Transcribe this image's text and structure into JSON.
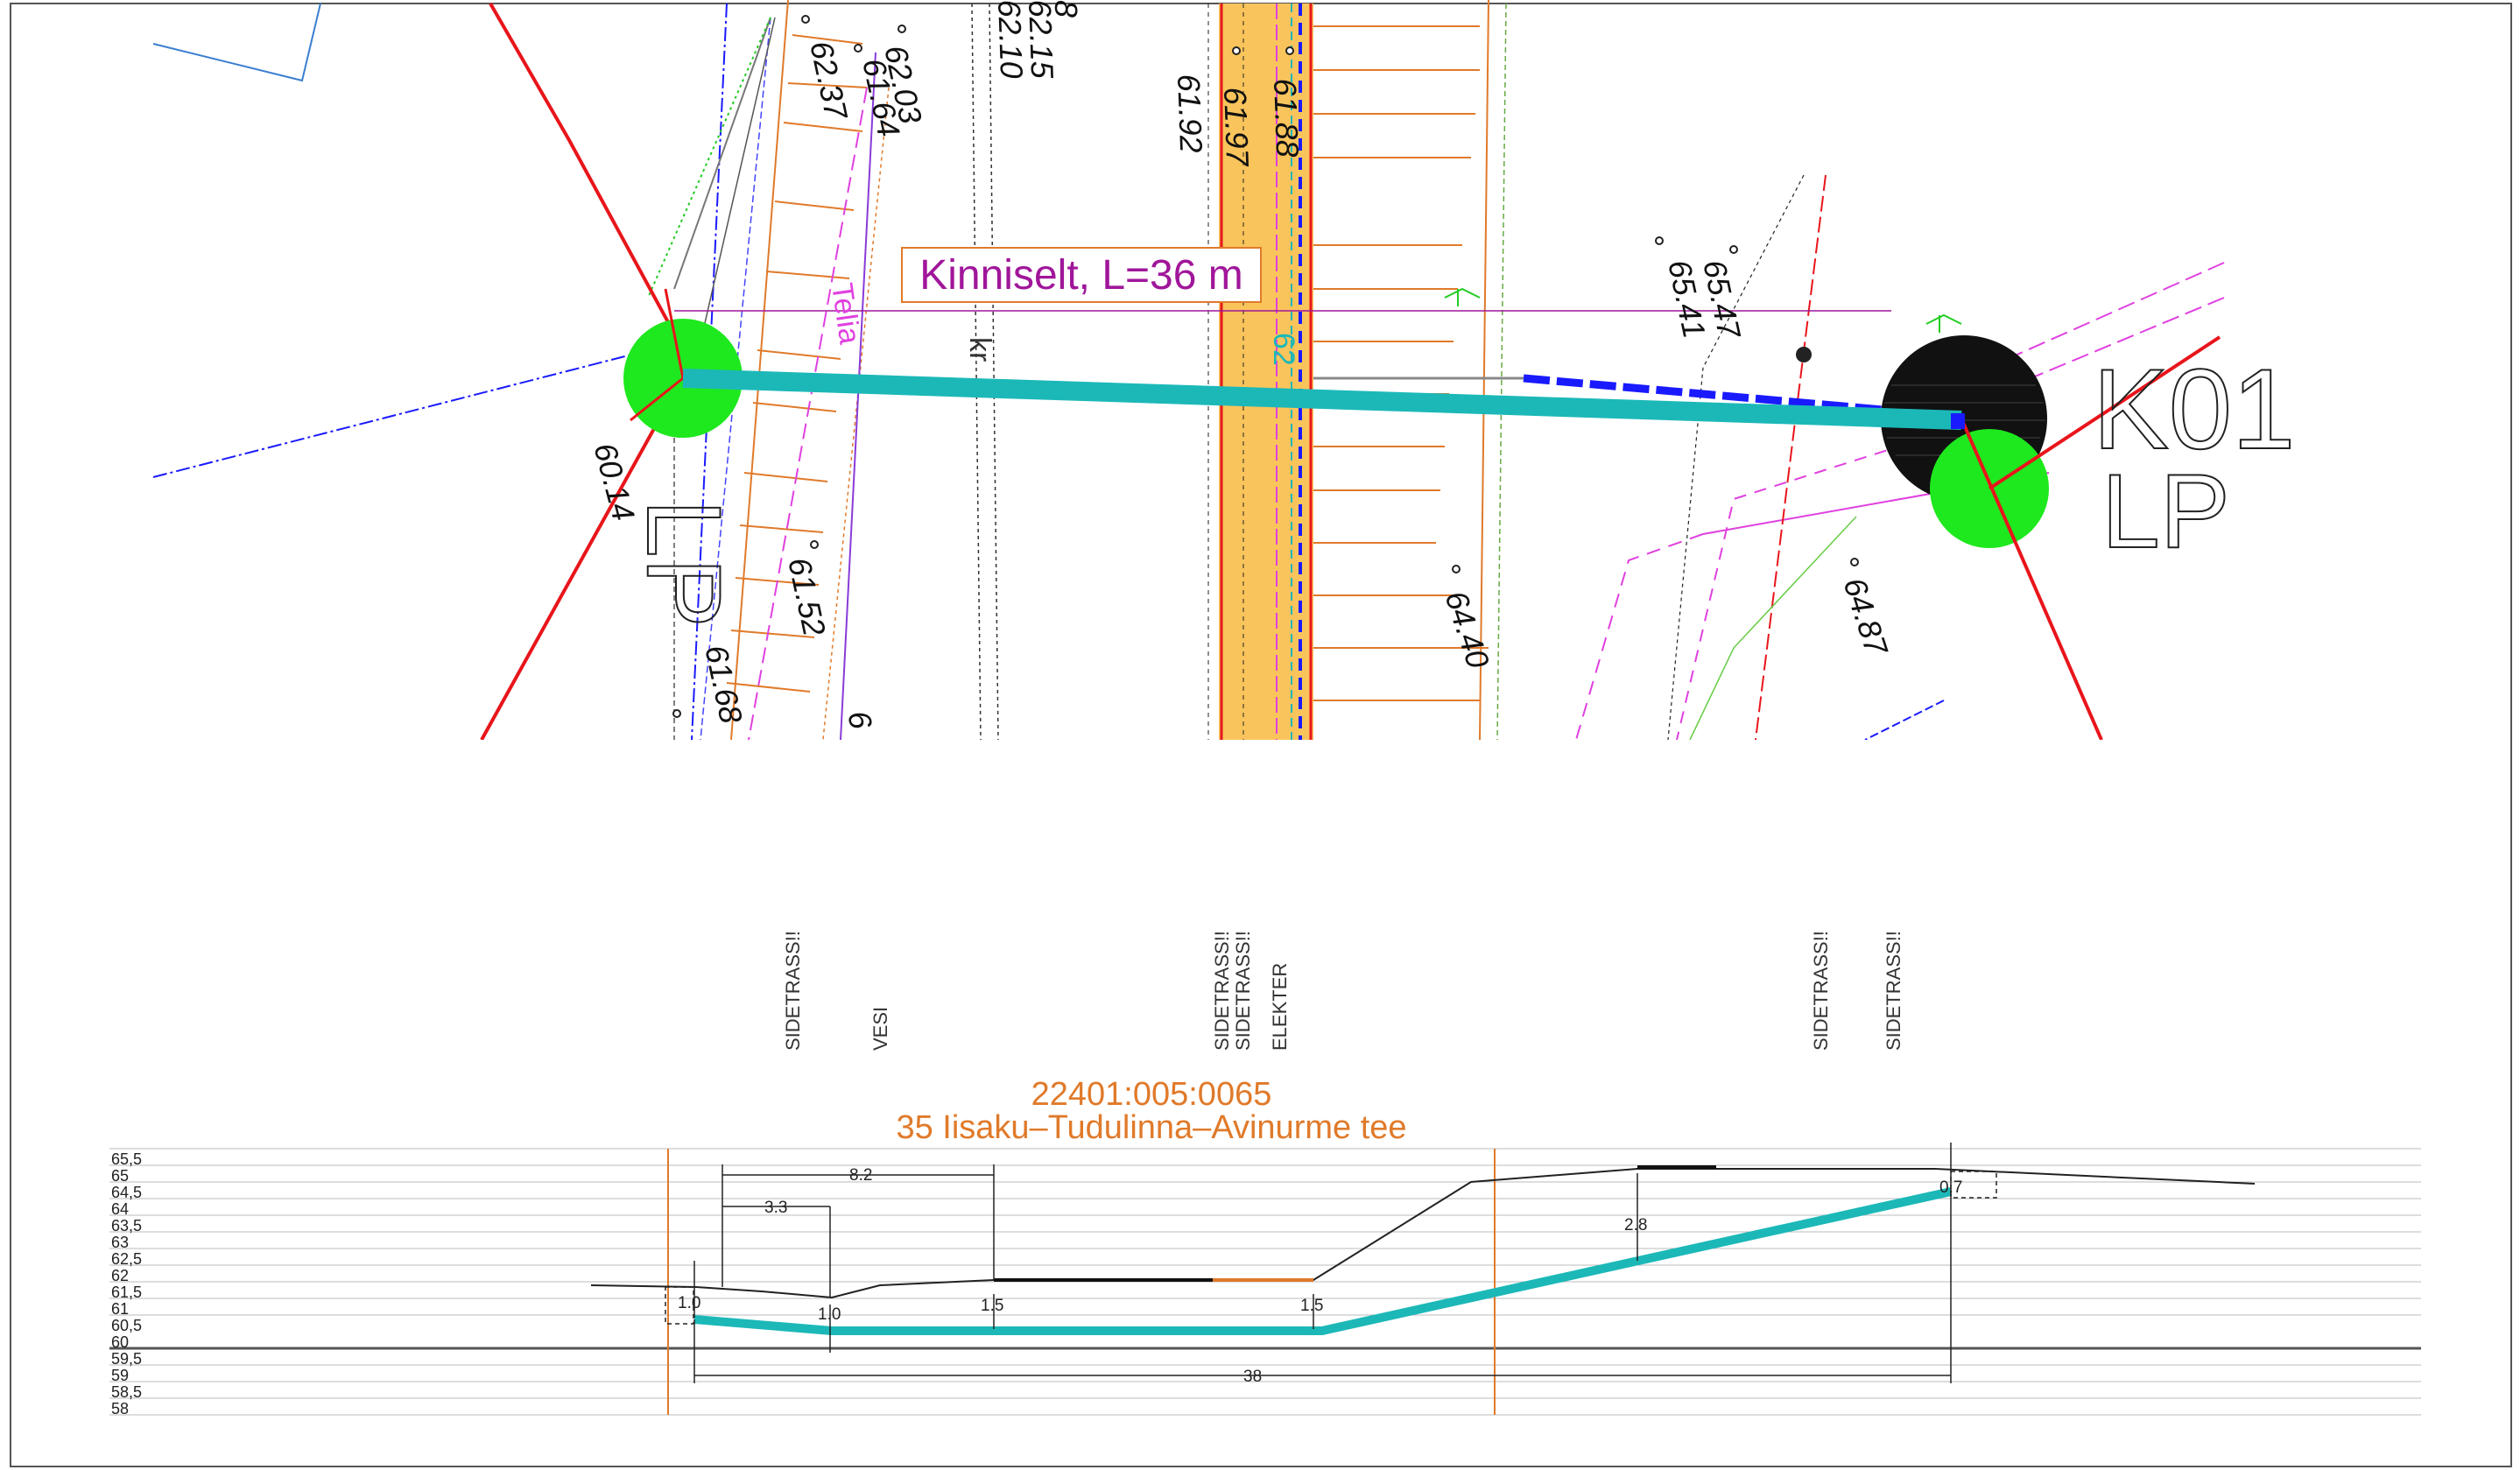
{
  "plan": {
    "callout": "Kinniselt, L=36 m",
    "well_id": "K01",
    "well_code": "LP",
    "left_code": "LP",
    "utility_labels": [
      "Telia",
      "kr",
      "62"
    ],
    "elevations": [
      "62.37",
      "61.64",
      "62.03",
      "62.15",
      "62.10",
      "8",
      "61.92",
      "61.97",
      "61.88",
      "65.47",
      "65.41",
      "60.14",
      "61.52",
      "61.68",
      "6",
      "64.40",
      "64.87"
    ],
    "colors": {
      "pipe": "#1cb8b8",
      "road": "#f9c45c",
      "red_line": "#e8151b",
      "callout": "#a0169a",
      "green": "#1ee81e",
      "blue_dash": "#1a1aff"
    }
  },
  "profile": {
    "crossings": [
      "SIDETRASS!!",
      "VESI",
      "SIDETRASS!!",
      "SIDETRASS!!",
      "ELEKTER",
      "SIDETRASS!!",
      "SIDETRASS!!"
    ],
    "parcel_id": "22401:005:0065",
    "road_name": "35  Iisaku–Tudulinna–Avinurme  tee",
    "y_ticks": [
      "65,5",
      "65",
      "64,5",
      "64",
      "63,5",
      "63",
      "62,5",
      "62",
      "61,5",
      "61",
      "60,5",
      "60",
      "59,5",
      "59",
      "58,5",
      "58"
    ],
    "dims": {
      "d82": "8.2",
      "d33": "3.3",
      "d28": "2.8",
      "d10a": "1.0",
      "d10b": "1.0",
      "d15a": "1.5",
      "d15b": "1.5",
      "d07": "0.7",
      "d38": "38"
    }
  }
}
